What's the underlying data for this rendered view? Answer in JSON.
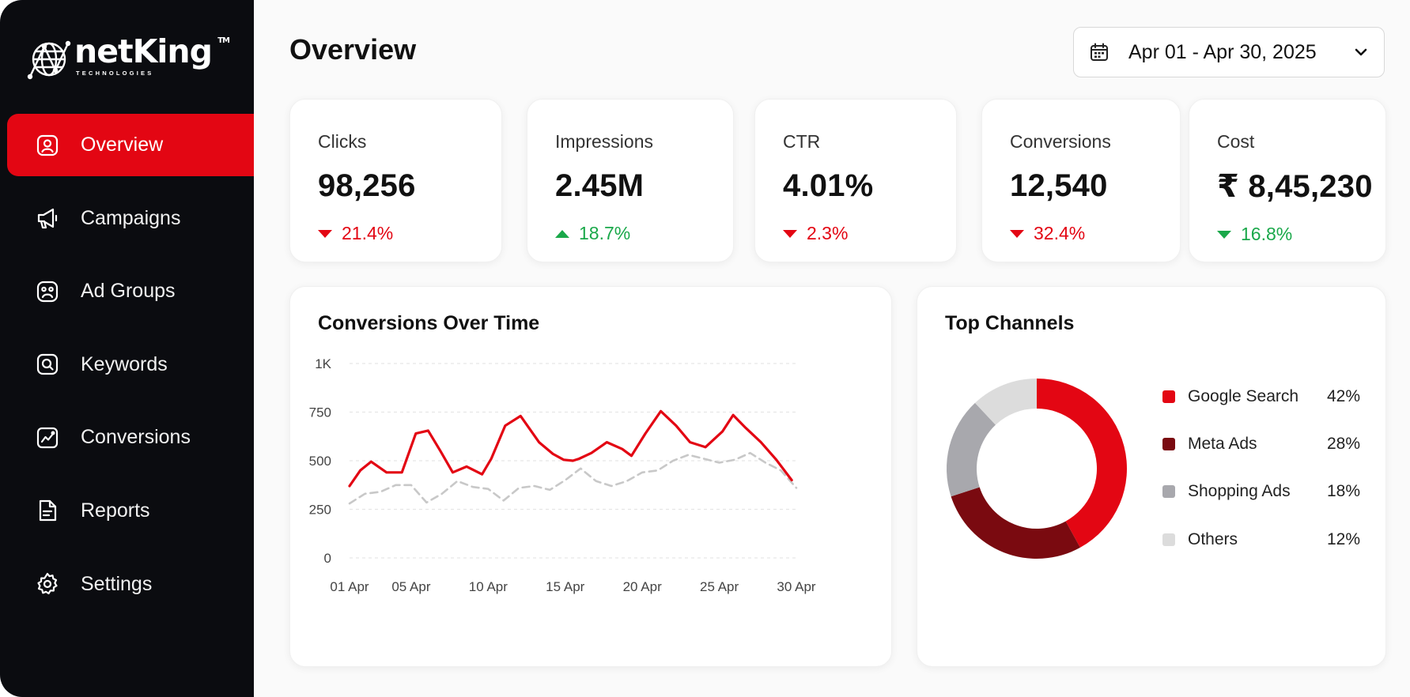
{
  "brand": {
    "name": "netKing",
    "tm": "TM",
    "tagline": "TECHNOLOGIES"
  },
  "sidebar": {
    "items": [
      {
        "label": "Overview",
        "icon": "user-square-icon",
        "active": true
      },
      {
        "label": "Campaigns",
        "icon": "megaphone-icon"
      },
      {
        "label": "Ad Groups",
        "icon": "group-face-icon"
      },
      {
        "label": "Keywords",
        "icon": "search-square-icon"
      },
      {
        "label": "Conversions",
        "icon": "trend-chart-icon"
      },
      {
        "label": "Reports",
        "icon": "document-icon"
      },
      {
        "label": "Settings",
        "icon": "gear-icon"
      }
    ]
  },
  "header": {
    "title": "Overview",
    "date_range": "Apr 01 - Apr 30, 2025"
  },
  "kpis": [
    {
      "label": "Clicks",
      "value": "98,256",
      "change": "21.4%",
      "direction": "down"
    },
    {
      "label": "Impressions",
      "value": "2.45M",
      "change": "18.7%",
      "direction": "up"
    },
    {
      "label": "CTR",
      "value": "4.01%",
      "change": "2.3%",
      "direction": "down"
    },
    {
      "label": "Conversions",
      "value": "12,540",
      "change": "32.4%",
      "direction": "down"
    },
    {
      "label": "Cost",
      "value": "₹ 8,45,230",
      "change": "16.8%",
      "direction": "down-green"
    }
  ],
  "colors": {
    "accent": "#e30613",
    "positive": "#1aa84a",
    "dark_red": "#7a0a10",
    "gray": "#a8a8ad",
    "light_gray": "#dcdcdc"
  },
  "chart_data": [
    {
      "type": "line",
      "title": "Conversions Over Time",
      "xlabel": "",
      "ylabel": "",
      "ylim": [
        0,
        1000
      ],
      "yticks": [
        "0",
        "250",
        "500",
        "750",
        "1K"
      ],
      "ytick_values": [
        0,
        250,
        500,
        750,
        1000
      ],
      "xticks": [
        "01 Apr",
        "05 Apr",
        "10 Apr",
        "15 Apr",
        "20 Apr",
        "25 Apr",
        "30 Apr"
      ],
      "xtick_days": [
        1,
        5,
        10,
        15,
        20,
        25,
        30
      ],
      "grid": true,
      "series": [
        {
          "style": "solid",
          "color": "#e30613",
          "x": [
            1,
            1.7,
            2.4,
            3.4,
            4.4,
            5.3,
            6.1,
            6.9,
            7.7,
            8.6,
            9.6,
            10.2,
            11.1,
            12.1,
            13.3,
            14.2,
            14.9,
            15.5,
            15.9,
            16.7,
            17.7,
            18.7,
            19.3,
            20.2,
            21.2,
            22.2,
            23.1,
            24.1,
            25.2,
            25.9,
            26.7,
            27.7,
            28.7,
            29.7
          ],
          "values": [
            370,
            450,
            495,
            440,
            440,
            640,
            655,
            550,
            440,
            470,
            430,
            510,
            680,
            730,
            595,
            535,
            505,
            500,
            510,
            540,
            595,
            560,
            525,
            640,
            755,
            680,
            595,
            570,
            650,
            735,
            670,
            595,
            505,
            400
          ]
        },
        {
          "style": "dashed",
          "color": "#c8c8c8",
          "x": [
            1,
            2,
            3,
            4,
            5,
            6,
            7,
            8,
            9,
            10,
            11,
            12,
            13,
            14,
            15,
            16,
            17,
            18,
            19,
            20,
            21,
            22,
            23,
            24,
            25,
            26,
            27,
            28,
            29,
            30
          ],
          "values": [
            280,
            330,
            340,
            375,
            375,
            285,
            330,
            395,
            365,
            355,
            295,
            360,
            370,
            350,
            400,
            460,
            395,
            370,
            395,
            440,
            450,
            500,
            530,
            510,
            490,
            505,
            540,
            490,
            450,
            360
          ]
        }
      ]
    },
    {
      "type": "pie",
      "title": "Top Channels",
      "donut": true,
      "labels": [
        "Google Search",
        "Meta Ads",
        "Shopping Ads",
        "Others"
      ],
      "values": [
        42,
        28,
        18,
        12
      ],
      "value_labels": [
        "42%",
        "28%",
        "18%",
        "12%"
      ],
      "colors": [
        "#e30613",
        "#7a0a10",
        "#a8a8ad",
        "#dcdcdc"
      ],
      "legend": "right"
    }
  ]
}
